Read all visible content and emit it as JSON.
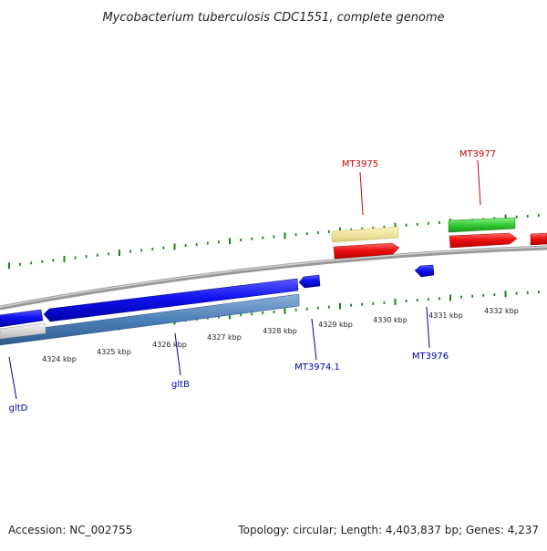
{
  "title": "Mycobacterium tuberculosis CDC1551, complete genome",
  "footer": {
    "accession": "Accession: NC_002755",
    "summary": "Topology: circular; Length: 4,403,837 bp; Genes: 4,237"
  },
  "scale_ticks": [
    "4324 kbp",
    "4325 kbp",
    "4326 kbp",
    "4327 kbp",
    "4328 kbp",
    "4329 kbp",
    "4330 kbp",
    "4331 kbp",
    "4332 kbp"
  ],
  "gene_labels": {
    "top": [
      "MT3975",
      "MT3977"
    ],
    "bottom": [
      "gltD",
      "gltB",
      "MT3974.1",
      "MT3976"
    ]
  },
  "colors": {
    "title": "#222222",
    "top_label": "#cc0000",
    "bottom_label": "#0000aa",
    "tick_green": "#118811",
    "red_gene": "#ee1111",
    "yellow_gene": "#eee099",
    "green_gene": "#33cc33",
    "blue_gene": "#1111ee",
    "steel_gene": "#4c80b8",
    "backbone": "#8c8c8c"
  }
}
